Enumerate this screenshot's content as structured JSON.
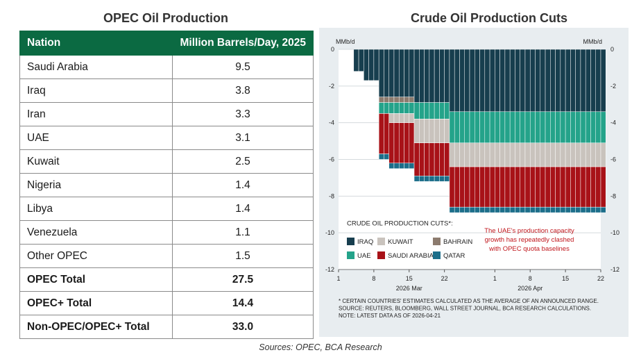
{
  "left_title": "OPEC Oil Production",
  "right_title": "Crude Oil Production Cuts",
  "table": {
    "headers": [
      "Nation",
      "Million Barrels/Day, 2025"
    ],
    "rows": [
      {
        "nation": "Saudi Arabia",
        "value": "9.5"
      },
      {
        "nation": "Iraq",
        "value": "3.8"
      },
      {
        "nation": "Iran",
        "value": "3.3"
      },
      {
        "nation": "UAE",
        "value": "3.1"
      },
      {
        "nation": "Kuwait",
        "value": "2.5"
      },
      {
        "nation": "Nigeria",
        "value": "1.4"
      },
      {
        "nation": "Libya",
        "value": "1.4"
      },
      {
        "nation": "Venezuela",
        "value": "1.1"
      },
      {
        "nation": "Other OPEC",
        "value": "1.5"
      },
      {
        "nation": "OPEC Total",
        "value": "27.5",
        "bold": true
      },
      {
        "nation": "OPEC+ Total",
        "value": "14.4",
        "bold": true
      },
      {
        "nation": "Non-OPEC/OPEC+ Total",
        "value": "33.0",
        "bold": true
      }
    ]
  },
  "source": "Sources: OPEC, BCA Research",
  "chart_data": {
    "type": "area",
    "title": "Crude Oil Production Cuts",
    "ylabel_left": "MMb/d",
    "ylabel_right": "MMb/d",
    "ylim": [
      -12,
      0
    ],
    "yticks": [
      0,
      -2,
      -4,
      -6,
      -8,
      -10,
      -12
    ],
    "xlim": [
      "2026-03-01",
      "2026-04-22"
    ],
    "xticks": [
      {
        "date": "2026-03-01",
        "label": "1"
      },
      {
        "date": "2026-03-08",
        "label": "8"
      },
      {
        "date": "2026-03-15",
        "label": "15"
      },
      {
        "date": "2026-03-22",
        "label": "22"
      },
      {
        "date": "2026-04-01",
        "label": "1"
      },
      {
        "date": "2026-04-08",
        "label": "8"
      },
      {
        "date": "2026-04-15",
        "label": "15"
      },
      {
        "date": "2026-04-22",
        "label": "22"
      }
    ],
    "month_labels": [
      {
        "date": "2026-03-15",
        "label": "2026 Mar"
      },
      {
        "date": "2026-04-08",
        "label": "2026 Apr"
      }
    ],
    "grid": true,
    "stacked": true,
    "legend": {
      "title": "CRUDE OIL PRODUCTION CUTS*:",
      "placement": "bottom-left"
    },
    "series": [
      {
        "name": "IRAQ",
        "color": "#173e4e",
        "points": [
          [
            "2026-03-04",
            -1.2
          ],
          [
            "2026-03-06",
            -1.7
          ],
          [
            "2026-03-08",
            -1.7
          ],
          [
            "2026-03-09",
            -2.6
          ],
          [
            "2026-03-16",
            -2.9
          ],
          [
            "2026-03-23",
            -3.4
          ],
          [
            "2026-04-22",
            -3.4
          ]
        ]
      },
      {
        "name": "BAHRAIN",
        "color": "#8c7b6e",
        "points": [
          [
            "2026-03-04",
            0
          ],
          [
            "2026-03-09",
            -0.3
          ],
          [
            "2026-03-16",
            0
          ],
          [
            "2026-04-22",
            0
          ]
        ]
      },
      {
        "name": "UAE",
        "color": "#24a38a",
        "points": [
          [
            "2026-03-04",
            0
          ],
          [
            "2026-03-09",
            -0.6
          ],
          [
            "2026-03-16",
            -0.9
          ],
          [
            "2026-03-23",
            -1.7
          ],
          [
            "2026-04-22",
            -1.7
          ]
        ]
      },
      {
        "name": "KUWAIT",
        "color": "#c9c3bd",
        "points": [
          [
            "2026-03-04",
            0
          ],
          [
            "2026-03-09",
            0
          ],
          [
            "2026-03-11",
            -0.5
          ],
          [
            "2026-03-16",
            -1.3
          ],
          [
            "2026-03-23",
            -1.3
          ],
          [
            "2026-04-22",
            -1.3
          ]
        ]
      },
      {
        "name": "SAUDI ARABIA",
        "color": "#a81218",
        "points": [
          [
            "2026-03-04",
            0
          ],
          [
            "2026-03-09",
            -2.2
          ],
          [
            "2026-03-11",
            -2.2
          ],
          [
            "2026-03-16",
            -1.8
          ],
          [
            "2026-03-23",
            -2.2
          ],
          [
            "2026-04-22",
            -2.2
          ]
        ]
      },
      {
        "name": "QATAR",
        "color": "#1c6e8a",
        "points": [
          [
            "2026-03-04",
            0
          ],
          [
            "2026-03-09",
            -0.3
          ],
          [
            "2026-03-16",
            -0.3
          ],
          [
            "2026-03-23",
            -0.3
          ],
          [
            "2026-04-22",
            -0.3
          ]
        ]
      }
    ],
    "annotation": [
      "The UAE's production capacity",
      "growth has repeatedly clashed",
      "with OPEC quota baselines"
    ],
    "footnotes": [
      "* CERTAIN COUNTRIES' ESTIMATES CALCULATED AS THE AVERAGE OF AN ANNOUNCED RANGE.",
      "SOURCE: REUTERS, BLOOMBERG, WALL STREET JOURNAL, BCA RESEARCH CALCULATIONS.",
      "NOTE: LATEST DATA AS OF 2026-04-21"
    ]
  }
}
